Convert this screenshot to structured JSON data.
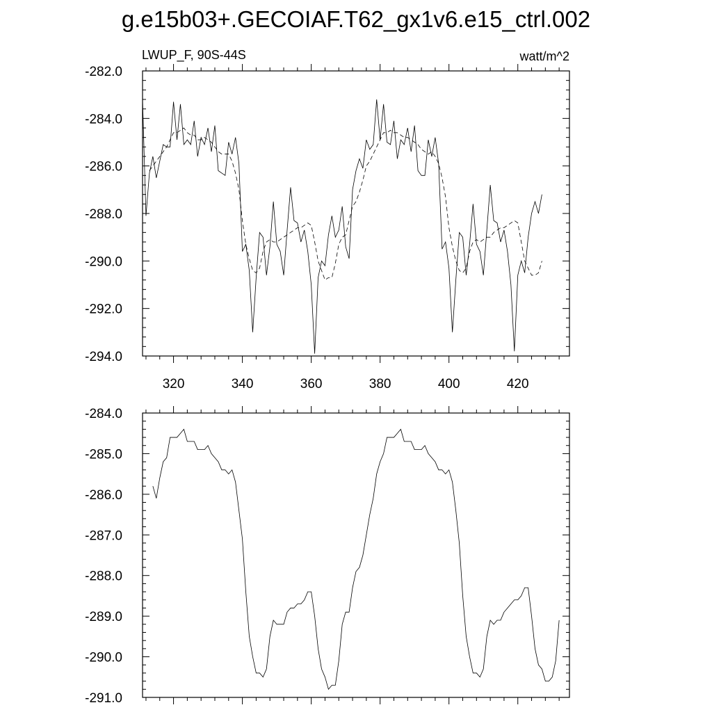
{
  "page": {
    "title": "g.e15b03+.GECOIAF.T62_gx1v6.e15_ctrl.002"
  },
  "chart_data": [
    {
      "type": "line",
      "title": "",
      "left_label": "LWUP_F, 90S-44S",
      "right_label": "watt/m^2",
      "xlim": [
        311,
        435
      ],
      "ylim": [
        -294.0,
        -282.0
      ],
      "x_ticks": [
        320,
        340,
        360,
        380,
        400,
        420
      ],
      "y_ticks": [
        -282.0,
        -284.0,
        -286.0,
        -288.0,
        -290.0,
        -292.0,
        -294.0
      ],
      "x_tick_labels": [
        "320",
        "340",
        "360",
        "380",
        "400",
        "420"
      ],
      "y_tick_labels": [
        "-282.0",
        "-284.0",
        "-286.0",
        "-288.0",
        "-290.0",
        "-292.0",
        "-294.0"
      ],
      "grid": false,
      "series": [
        {
          "style": "solid",
          "x_start": 311,
          "x_step": 1,
          "values": [
            -283.2,
            -288.1,
            -286.3,
            -285.6,
            -286.5,
            -285.8,
            -285.1,
            -285.2,
            -285.2,
            -283.3,
            -284.9,
            -283.4,
            -285.1,
            -284.9,
            -285.1,
            -284.1,
            -285.6,
            -284.8,
            -285.1,
            -284.4,
            -285.4,
            -284.3,
            -286.2,
            -286.3,
            -286.4,
            -285.0,
            -285.5,
            -284.8,
            -285.9,
            -289.6,
            -289.3,
            -290.4,
            -293.0,
            -290.7,
            -288.8,
            -289.0,
            -290.6,
            -289.4,
            -287.5,
            -289.3,
            -289.6,
            -290.6,
            -288.7,
            -286.9,
            -288.3,
            -288.4,
            -289.2,
            -288.7,
            -289.6,
            -291.0,
            -293.9,
            -290.7,
            -290.0,
            -290.2,
            -288.9,
            -288.1,
            -289.0,
            -288.7,
            -287.7,
            -289.4,
            -289.9,
            -287.0,
            -286.2,
            -285.7,
            -286.1,
            -284.9,
            -285.3,
            -285.1,
            -283.2,
            -284.9,
            -283.4,
            -285.0,
            -285.1,
            -284.1,
            -285.7,
            -284.9,
            -285.1,
            -284.4,
            -285.4,
            -284.3,
            -286.2,
            -286.4,
            -286.4,
            -284.9,
            -285.6,
            -284.8,
            -285.9,
            -289.5,
            -289.2,
            -290.3,
            -293.0,
            -290.8,
            -288.8,
            -289.0,
            -290.6,
            -289.3,
            -287.6,
            -289.3,
            -289.6,
            -290.6,
            -288.7,
            -286.8,
            -288.3,
            -288.4,
            -289.2,
            -288.7,
            -289.6,
            -291.0,
            -293.8,
            -290.6,
            -290.0,
            -290.5,
            -289.0,
            -288.0,
            -287.5,
            -288.0,
            -287.2
          ]
        },
        {
          "style": "dashed",
          "x_start": 313,
          "x_step": 1,
          "values": [
            -286.2,
            -286.0,
            -285.8,
            -285.6,
            -285.4,
            -285.2,
            -284.9,
            -284.6,
            -284.6,
            -284.5,
            -284.4,
            -284.6,
            -284.7,
            -284.7,
            -284.9,
            -284.9,
            -284.8,
            -284.9,
            -285.0,
            -285.2,
            -285.4,
            -285.5,
            -285.5,
            -285.5,
            -285.8,
            -286.3,
            -287.0,
            -288.3,
            -289.3,
            -289.9,
            -290.4,
            -290.5,
            -290.3,
            -289.6,
            -289.2,
            -289.1,
            -289.2,
            -289.2,
            -289.1,
            -289.0,
            -288.9,
            -288.8,
            -288.7,
            -288.6,
            -288.6,
            -288.5,
            -288.4,
            -288.5,
            -289.2,
            -290.0,
            -290.4,
            -290.8,
            -290.7,
            -290.7,
            -290.1,
            -289.3,
            -289.0,
            -288.9,
            -288.3,
            -287.7,
            -287.5,
            -287.1,
            -286.6,
            -286.0,
            -285.8,
            -285.5,
            -285.2,
            -284.9,
            -284.6,
            -284.6,
            -284.5,
            -284.6,
            -284.6,
            -284.7,
            -284.8,
            -284.8,
            -284.9,
            -285.0,
            -285.1,
            -285.3,
            -285.4,
            -285.5,
            -285.4,
            -285.6,
            -285.9,
            -286.5,
            -287.3,
            -288.6,
            -289.4,
            -290.0,
            -290.4,
            -290.5,
            -290.3,
            -289.6,
            -289.2,
            -289.1,
            -289.2,
            -289.1,
            -289.0,
            -289.0,
            -288.8,
            -288.7,
            -288.6,
            -288.6,
            -288.5,
            -288.4,
            -288.3,
            -288.4,
            -289.2,
            -290.0,
            -290.3,
            -290.6,
            -290.6,
            -290.5,
            -290.0
          ]
        }
      ]
    },
    {
      "type": "line",
      "title": "",
      "xlim": [
        311,
        435
      ],
      "ylim": [
        -291.0,
        -284.0
      ],
      "x_ticks": [
        320,
        340,
        360,
        380,
        400,
        420
      ],
      "y_ticks": [
        -284.0,
        -285.0,
        -286.0,
        -287.0,
        -288.0,
        -289.0,
        -290.0,
        -291.0
      ],
      "y_tick_labels": [
        "-284.0",
        "-285.0",
        "-286.0",
        "-287.0",
        "-288.0",
        "-289.0",
        "-290.0",
        "-291.0"
      ],
      "grid": false,
      "series": [
        {
          "style": "solid",
          "x_start": 314,
          "x_step": 1,
          "values": [
            -285.8,
            -286.1,
            -285.6,
            -285.2,
            -285.1,
            -284.6,
            -284.6,
            -284.6,
            -284.5,
            -284.4,
            -284.7,
            -284.7,
            -284.7,
            -284.9,
            -284.9,
            -284.9,
            -284.8,
            -285.0,
            -285.1,
            -285.2,
            -285.4,
            -285.4,
            -285.5,
            -285.4,
            -285.7,
            -286.4,
            -287.1,
            -288.4,
            -289.5,
            -290.0,
            -290.4,
            -290.4,
            -290.5,
            -290.3,
            -289.5,
            -289.1,
            -289.2,
            -289.2,
            -289.2,
            -288.9,
            -288.8,
            -288.8,
            -288.7,
            -288.7,
            -288.6,
            -288.4,
            -288.4,
            -289.0,
            -289.8,
            -290.3,
            -290.5,
            -290.8,
            -290.7,
            -290.7,
            -290.1,
            -289.2,
            -288.9,
            -288.9,
            -288.3,
            -287.9,
            -287.8,
            -287.5,
            -287.0,
            -286.5,
            -286.1,
            -285.5,
            -285.2,
            -285.0,
            -284.6,
            -284.6,
            -284.6,
            -284.5,
            -284.4,
            -284.7,
            -284.7,
            -284.7,
            -284.9,
            -284.9,
            -284.9,
            -284.8,
            -285.0,
            -285.1,
            -285.2,
            -285.4,
            -285.4,
            -285.5,
            -285.4,
            -285.7,
            -286.4,
            -287.2,
            -288.5,
            -289.5,
            -290.0,
            -290.4,
            -290.4,
            -290.5,
            -290.3,
            -289.5,
            -289.1,
            -289.2,
            -289.1,
            -289.1,
            -288.9,
            -288.8,
            -288.7,
            -288.6,
            -288.6,
            -288.5,
            -288.3,
            -288.3,
            -289.0,
            -289.8,
            -290.2,
            -290.3,
            -290.6,
            -290.6,
            -290.5,
            -290.1,
            -289.1
          ]
        }
      ]
    }
  ]
}
